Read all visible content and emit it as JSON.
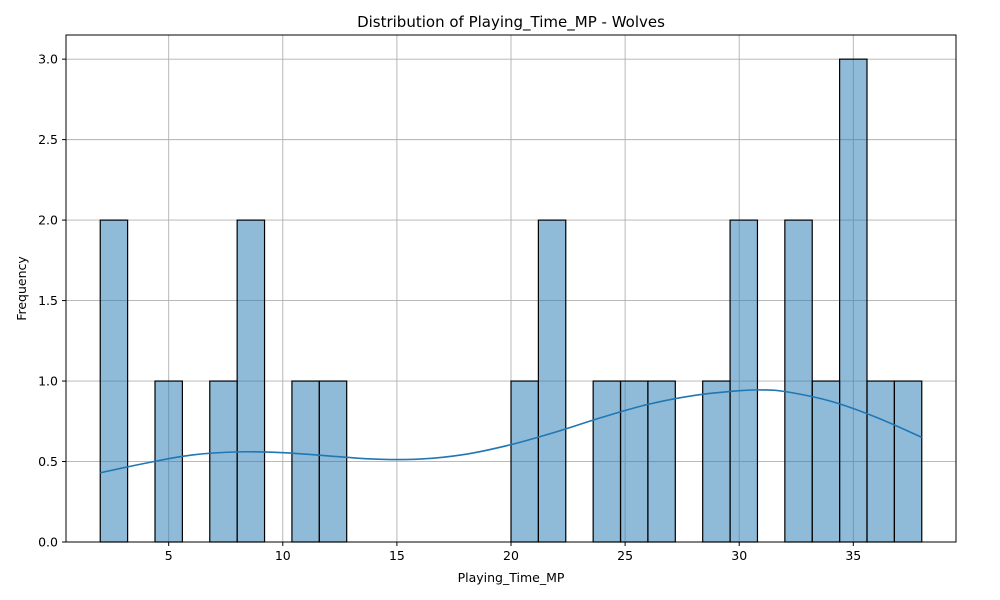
{
  "chart_data": {
    "type": "bar",
    "title": "Distribution of Playing_Time_MP - Wolves",
    "xlabel": "Playing_Time_MP",
    "ylabel": "Frequency",
    "xlim": [
      0.5,
      39.5
    ],
    "ylim": [
      0,
      3.15
    ],
    "xticks": [
      5,
      10,
      15,
      20,
      25,
      30,
      35
    ],
    "yticks": [
      0.0,
      0.5,
      1.0,
      1.5,
      2.0,
      2.5,
      3.0
    ],
    "grid": true,
    "bin_edges": [
      2.0,
      3.2,
      4.4,
      5.6,
      6.8,
      8.0,
      9.2,
      10.4,
      11.6,
      12.8,
      14.0,
      15.2,
      16.4,
      17.6,
      18.8,
      20.0,
      21.2,
      22.4,
      23.6,
      24.8,
      26.0,
      27.2,
      28.4,
      29.6,
      30.8,
      32.0,
      33.2,
      34.4,
      35.6,
      36.8,
      38.0
    ],
    "counts": [
      2,
      0,
      1,
      0,
      1,
      2,
      0,
      1,
      1,
      0,
      0,
      0,
      0,
      0,
      0,
      1,
      2,
      0,
      1,
      1,
      1,
      0,
      1,
      2,
      0,
      2,
      1,
      3,
      1,
      1
    ],
    "bar_color": "#1f77b4",
    "bar_alpha": 0.5,
    "edge_color": "#000000",
    "kde": {
      "color": "#1f77b4",
      "x": [
        2,
        4,
        6,
        8,
        10,
        12,
        14,
        16,
        18,
        20,
        22,
        24,
        26,
        28,
        30,
        31,
        32,
        34,
        36,
        38
      ],
      "y": [
        0.43,
        0.49,
        0.54,
        0.56,
        0.555,
        0.535,
        0.515,
        0.515,
        0.545,
        0.605,
        0.685,
        0.775,
        0.855,
        0.91,
        0.94,
        0.945,
        0.935,
        0.875,
        0.775,
        0.65
      ]
    }
  }
}
